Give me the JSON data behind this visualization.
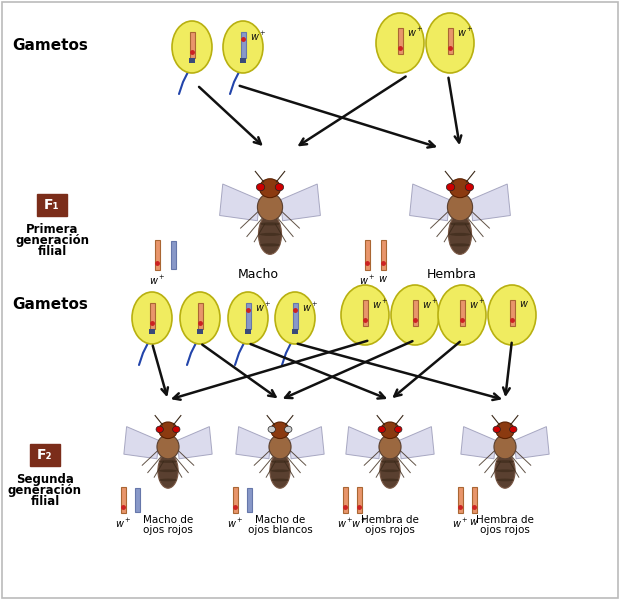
{
  "bg_color": "#ffffff",
  "label_color": "#000000",
  "f_box_color": "#7B2D1A",
  "f_text_color": "#ffffff",
  "gametos_label": "Gametos",
  "f1_box": "F₁",
  "f1_label1": "Primera",
  "f1_label2": "generación",
  "f1_label3": "filial",
  "f2_box": "F₂",
  "f2_label1": "Segunda",
  "f2_label2": "generación",
  "f2_label3": "filial",
  "macho_label": "Macho",
  "hembra_label": "Hembra",
  "f2_labels": [
    "Macho de\nojos rojos",
    "Macho de\nojos blancos",
    "Hembra de\nojos rojos",
    "Hembra de\nojos rojos"
  ],
  "chromosome_orange": "#E8956B",
  "chromosome_blue_light": "#8898C8",
  "chromosome_blue_dark": "#3A4A7A",
  "dot_red": "#CC2222",
  "cell_yellow": "#F0EC60",
  "cell_border": "#B8B010",
  "arrow_color": "#111111",
  "sperm_color": "#2244AA",
  "fly_head": "#8B3A10",
  "fly_thorax": "#9B6840",
  "fly_abdomen": "#5A4030",
  "fly_abdomen2": "#7A5845",
  "fly_wing": "#D0D0E8",
  "fly_wing_border": "#9090B0",
  "fly_eye_red": "#CC0000",
  "fly_eye_white": "#CCCCCC"
}
